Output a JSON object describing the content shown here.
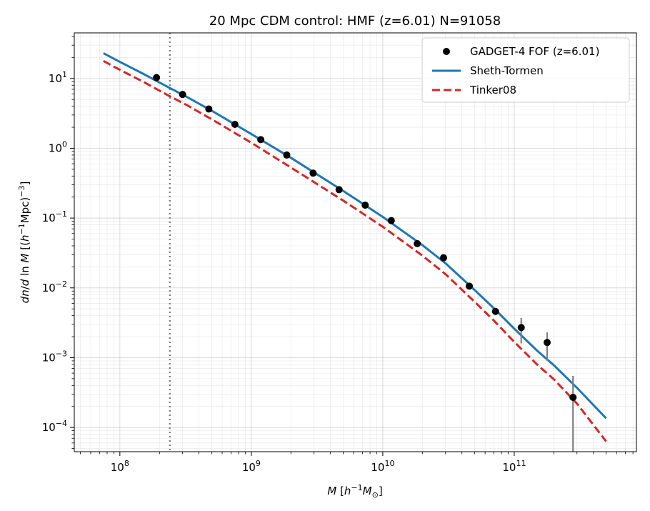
{
  "chart_data": {
    "type": "scatter",
    "title": "20 Mpc CDM control: HMF (z=6.01) N=91058",
    "xlabel": "M [h^-1 M_sun]",
    "ylabel": "dn/dln M [(h^-1 Mpc)^-3]",
    "xscale": "log",
    "yscale": "log",
    "xlim": [
      45000000.0,
      850000000000.0
    ],
    "ylim": [
      4.5e-05,
      45
    ],
    "x_ticks": [
      {
        "base": "10",
        "exp": "8",
        "value": 100000000.0
      },
      {
        "base": "10",
        "exp": "9",
        "value": 1000000000.0
      },
      {
        "base": "10",
        "exp": "10",
        "value": 10000000000.0
      },
      {
        "base": "10",
        "exp": "11",
        "value": 100000000000.0
      }
    ],
    "y_ticks": [
      {
        "base": "10",
        "exp": "1",
        "value": 10
      },
      {
        "base": "10",
        "exp": "0",
        "value": 1
      },
      {
        "base": "10",
        "exp": "−1",
        "value": 0.1
      },
      {
        "base": "10",
        "exp": "−2",
        "value": 0.01
      },
      {
        "base": "10",
        "exp": "−3",
        "value": 0.001
      },
      {
        "base": "10",
        "exp": "−4",
        "value": 0.0001
      }
    ],
    "grid": true,
    "legend_position": "upper right",
    "vertical_line": {
      "x": 240000000.0,
      "style": "dotted",
      "color": "#777777"
    },
    "series": [
      {
        "name": "GADGET-4 FOF (z=6.01)",
        "kind": "points",
        "color": "#000000",
        "points": [
          {
            "x": 190000000.0,
            "y": 10.3
          },
          {
            "x": 300000000.0,
            "y": 5.9
          },
          {
            "x": 475000000.0,
            "y": 3.65
          },
          {
            "x": 750000000.0,
            "y": 2.2
          },
          {
            "x": 1180000000.0,
            "y": 1.33
          },
          {
            "x": 1860000000.0,
            "y": 0.8
          },
          {
            "x": 2950000000.0,
            "y": 0.44
          },
          {
            "x": 4650000000.0,
            "y": 0.255
          },
          {
            "x": 7350000000.0,
            "y": 0.153
          },
          {
            "x": 11600000000.0,
            "y": 0.092
          },
          {
            "x": 18300000000.0,
            "y": 0.043
          },
          {
            "x": 29000000000.0,
            "y": 0.027
          },
          {
            "x": 45500000000.0,
            "y": 0.0106
          },
          {
            "x": 72000000000.0,
            "y": 0.0046
          },
          {
            "x": 113000000000.0,
            "y": 0.0027,
            "yerr": [
              0.0016,
              0.0037
            ]
          },
          {
            "x": 178000000000.0,
            "y": 0.00165,
            "yerr": [
              0.0009,
              0.0023
            ]
          },
          {
            "x": 280000000000.0,
            "y": 0.00027,
            "yerr": [
              4.5e-05,
              0.00055
            ]
          }
        ]
      },
      {
        "name": "Sheth-Tormen",
        "kind": "line",
        "style": "solid",
        "color": "#1f77b4",
        "x": [
          75000000.0,
          100000000.0,
          150000000.0,
          240000000.0,
          320000000.0,
          500000000.0,
          1000000000.0,
          2000000000.0,
          5000000000.0,
          10000000000.0,
          20000000000.0,
          30000000000.0,
          50000000000.0,
          70000000000.0,
          100000000000.0,
          150000000000.0,
          200000000000.0,
          300000000000.0,
          500000000000.0
        ],
        "y": [
          23,
          17.3,
          11.7,
          7.3,
          5.5,
          3.45,
          1.6,
          0.73,
          0.245,
          0.104,
          0.041,
          0.0225,
          0.0093,
          0.0051,
          0.0026,
          0.00125,
          0.00078,
          0.00037,
          0.000135
        ]
      },
      {
        "name": "Tinker08",
        "kind": "line",
        "style": "dashed",
        "color": "#d62728",
        "x": [
          75000000.0,
          100000000.0,
          150000000.0,
          240000000.0,
          320000000.0,
          500000000.0,
          1000000000.0,
          2000000000.0,
          5000000000.0,
          10000000000.0,
          20000000000.0,
          30000000000.0,
          50000000000.0,
          70000000000.0,
          100000000000.0,
          150000000000.0,
          200000000000.0,
          300000000000.0,
          500000000000.0
        ],
        "y": [
          17.8,
          13.3,
          9.0,
          5.55,
          4.2,
          2.6,
          1.2,
          0.53,
          0.178,
          0.075,
          0.029,
          0.0157,
          0.0063,
          0.0034,
          0.00168,
          0.00079,
          0.00049,
          0.00022,
          6.3e-05
        ]
      }
    ]
  }
}
